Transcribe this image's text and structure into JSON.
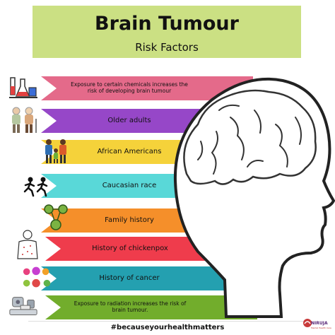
{
  "header": {
    "title": "Brain Tumour",
    "subtitle": "Risk Factors"
  },
  "factors": [
    {
      "text": "Exposure to certain chemicals increases the risk of developing brain tumour",
      "color": "#e46a8a",
      "icon": "lab-flask-icon"
    },
    {
      "text": "Older adults",
      "color": "#9647c8",
      "icon": "older-adults-icon"
    },
    {
      "text": "African Americans",
      "color": "#f5d23a",
      "icon": "family-icon"
    },
    {
      "text": "Caucasian race",
      "color": "#59d8d8",
      "icon": "running-people-icon"
    },
    {
      "text": "Family history",
      "color": "#f58f2a",
      "icon": "dna-family-icon"
    },
    {
      "text": "History of chickenpox",
      "color": "#ef3c4c",
      "icon": "chickenpox-person-icon"
    },
    {
      "text": "History of cancer",
      "color": "#24a0b0",
      "icon": "cancer-cells-icon"
    },
    {
      "text": "Exposure to radiation increases the risk of brain tumour.",
      "color": "#72ad2c",
      "icon": "radiation-machine-icon"
    }
  ],
  "footer": {
    "hashtag": "#becauseyourhealthmatters",
    "logo_name": "NIRUJA",
    "logo_tagline": "Mental Health Care"
  }
}
